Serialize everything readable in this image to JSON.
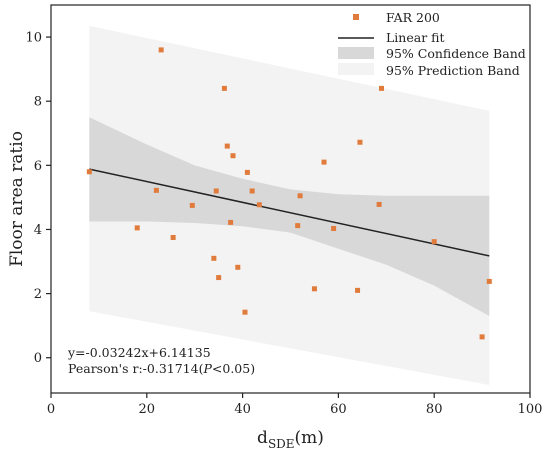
{
  "chart_data": {
    "type": "scatter",
    "xlabel_main": "d",
    "xlabel_sub": "SDE",
    "xlabel_unit": "(m)",
    "ylabel": "Floor area ratio",
    "xlim": [
      0,
      100
    ],
    "ylim": [
      -1.1,
      11
    ],
    "xticks": [
      0,
      20,
      40,
      60,
      80,
      100
    ],
    "yticks": [
      0,
      2,
      4,
      6,
      8,
      10
    ],
    "grid": false,
    "legend": {
      "placement": "top-right",
      "entries": [
        {
          "key": "scatter",
          "label": "FAR 200"
        },
        {
          "key": "fit",
          "label": "Linear fit"
        },
        {
          "key": "conf",
          "label": "95% Confidence Band"
        },
        {
          "key": "pred",
          "label": "95% Prediction Band"
        }
      ]
    },
    "annotations": {
      "equation": "y=-0.03242x+6.14135",
      "pearson_prefix": "Pearson's r:-0.31714(",
      "pearson_p": "P",
      "pearson_suffix": "<0.05)"
    },
    "colors": {
      "points": "#e07b3c",
      "fit": "#222222",
      "confidence": "#d8d8d8",
      "prediction": "#f3f3f3",
      "axis": "#222222"
    },
    "fit": {
      "slope": -0.03242,
      "intercept": 6.14135,
      "x_range": [
        8,
        91.5
      ]
    },
    "confidence_band": {
      "x": [
        8,
        20,
        30,
        40,
        50,
        60,
        70,
        80,
        91.5
      ],
      "upper": [
        7.5,
        6.65,
        6.0,
        5.58,
        5.25,
        5.1,
        5.05,
        5.05,
        5.05
      ],
      "lower": [
        4.25,
        4.25,
        4.2,
        4.1,
        3.9,
        3.4,
        2.9,
        2.25,
        1.3
      ]
    },
    "prediction_band": {
      "x": [
        8,
        91.5
      ],
      "upper": [
        10.35,
        7.7
      ],
      "lower": [
        1.45,
        -0.85
      ]
    },
    "series": [
      {
        "name": "FAR 200",
        "points": [
          {
            "x": 8.0,
            "y": 5.8
          },
          {
            "x": 18.0,
            "y": 4.05
          },
          {
            "x": 22.0,
            "y": 5.22
          },
          {
            "x": 23.0,
            "y": 9.6
          },
          {
            "x": 25.5,
            "y": 3.75
          },
          {
            "x": 29.5,
            "y": 4.75
          },
          {
            "x": 34.0,
            "y": 3.1
          },
          {
            "x": 34.5,
            "y": 5.2
          },
          {
            "x": 35.0,
            "y": 2.5
          },
          {
            "x": 36.2,
            "y": 8.4
          },
          {
            "x": 36.8,
            "y": 6.6
          },
          {
            "x": 37.5,
            "y": 4.22
          },
          {
            "x": 38.0,
            "y": 6.3
          },
          {
            "x": 39.0,
            "y": 2.82
          },
          {
            "x": 40.5,
            "y": 1.42
          },
          {
            "x": 41.0,
            "y": 5.78
          },
          {
            "x": 42.0,
            "y": 5.2
          },
          {
            "x": 43.5,
            "y": 4.77
          },
          {
            "x": 51.5,
            "y": 4.12
          },
          {
            "x": 52.0,
            "y": 5.05
          },
          {
            "x": 55.0,
            "y": 2.15
          },
          {
            "x": 57.0,
            "y": 6.1
          },
          {
            "x": 59.0,
            "y": 4.03
          },
          {
            "x": 64.0,
            "y": 2.1
          },
          {
            "x": 64.5,
            "y": 6.72
          },
          {
            "x": 68.5,
            "y": 4.78
          },
          {
            "x": 69.0,
            "y": 8.4
          },
          {
            "x": 80.0,
            "y": 3.62
          },
          {
            "x": 90.0,
            "y": 0.65
          },
          {
            "x": 91.5,
            "y": 2.38
          }
        ]
      }
    ]
  }
}
